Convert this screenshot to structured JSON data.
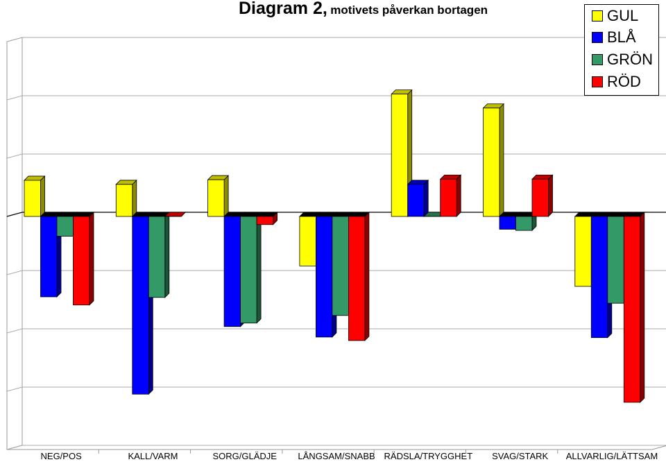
{
  "title": {
    "main": "Diagram 2,",
    "sub": "motivets påverkan bortagen"
  },
  "chart_data": {
    "type": "bar",
    "style": "3d-clustered",
    "categories": [
      "NEG/POS",
      "KALL/VARM",
      "SORG/GLÄDJE",
      "LÅNGSAM/SNABB",
      "RÄDSLA/TRYGGHET",
      "SVAG/STARK",
      "ALLVARLIG/LÄTTSAM"
    ],
    "ylim": [
      -4,
      3
    ],
    "gridlines": true,
    "legend_position": "top-right",
    "series": [
      {
        "name": "GUL",
        "color": "#FFFF00",
        "values": [
          0.62,
          0.55,
          0.63,
          -0.85,
          2.1,
          1.86,
          -1.2
        ]
      },
      {
        "name": "BLÅ",
        "color": "#0000FF",
        "values": [
          -1.38,
          -3.05,
          -1.89,
          -2.07,
          0.55,
          -0.22,
          -2.08
        ]
      },
      {
        "name": "GRÖN",
        "color": "#339966",
        "values": [
          -0.34,
          -1.39,
          -1.83,
          -1.7,
          0.0,
          -0.24,
          -1.49
        ]
      },
      {
        "name": "RÖD",
        "color": "#FF0000",
        "values": [
          -1.52,
          0.0,
          -0.14,
          -2.13,
          0.64,
          0.64,
          -3.19
        ]
      }
    ]
  }
}
